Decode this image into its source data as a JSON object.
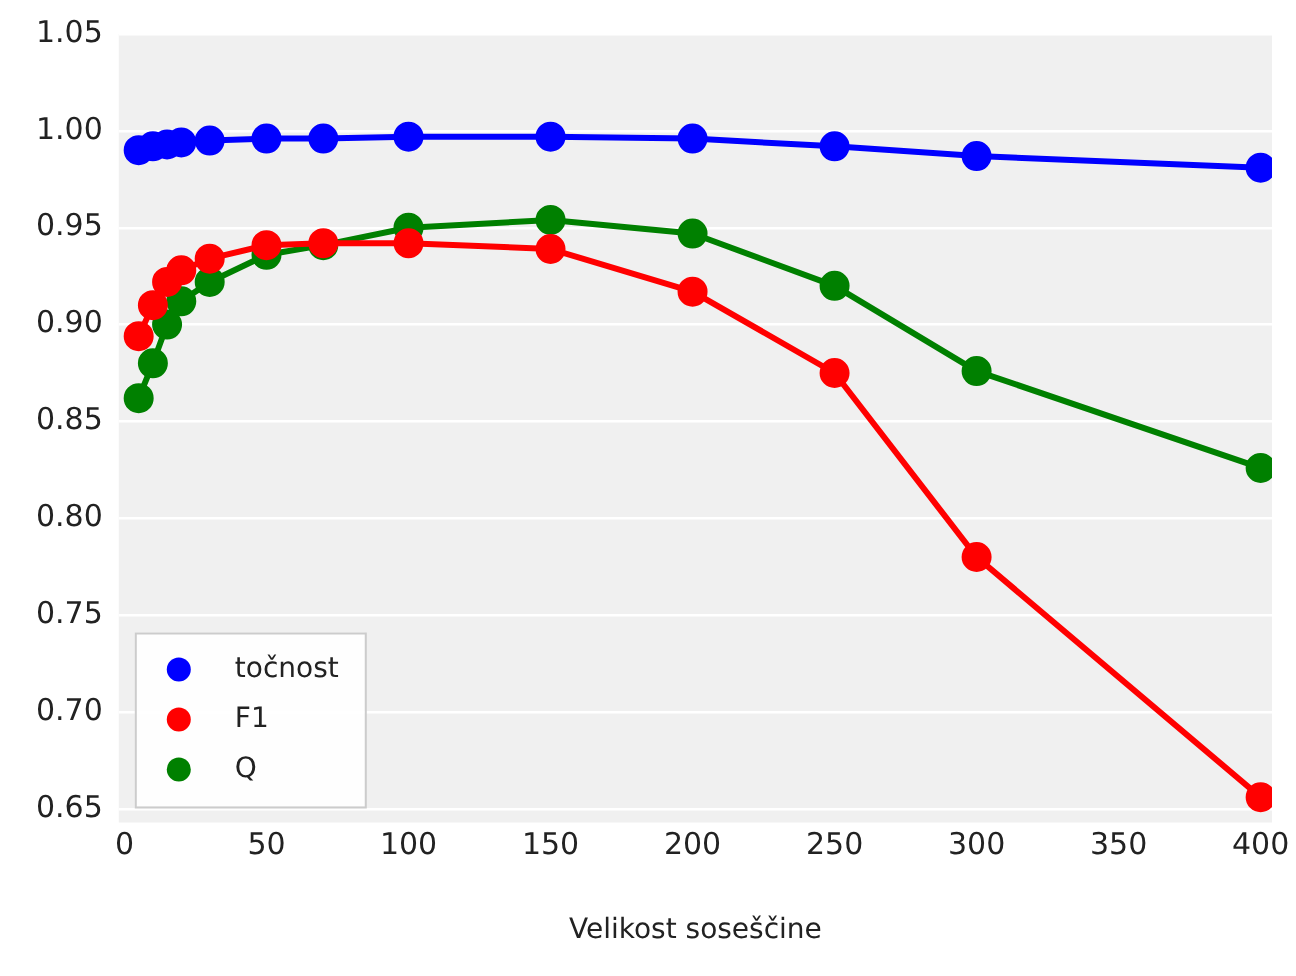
{
  "chart_data": {
    "type": "line",
    "xlabel": "Velikost soseščine",
    "x": [
      5,
      10,
      15,
      20,
      30,
      50,
      70,
      100,
      150,
      200,
      250,
      300,
      400
    ],
    "series": [
      {
        "name": "točnost",
        "color": "#0000ff",
        "values": [
          0.99,
          0.992,
          0.993,
          0.994,
          0.995,
          0.996,
          0.996,
          0.997,
          0.997,
          0.996,
          0.992,
          0.987,
          0.981
        ]
      },
      {
        "name": "F1",
        "color": "#ff0000",
        "values": [
          0.894,
          0.91,
          0.922,
          0.928,
          0.934,
          0.941,
          0.942,
          0.942,
          0.939,
          0.917,
          0.875,
          0.78,
          0.656
        ]
      },
      {
        "name": "Q",
        "color": "#008000",
        "values": [
          0.862,
          0.88,
          0.9,
          0.912,
          0.922,
          0.936,
          0.941,
          0.95,
          0.954,
          0.947,
          0.92,
          0.876,
          0.826
        ]
      }
    ],
    "xlim": [
      -2,
      404
    ],
    "xticks": [
      0,
      50,
      100,
      150,
      200,
      250,
      300,
      350,
      400
    ],
    "ylim": [
      0.643,
      1.05
    ],
    "yticks": [
      {
        "value": 0.65,
        "label": "0.65"
      },
      {
        "value": 0.7,
        "label": "0.70"
      },
      {
        "value": 0.75,
        "label": "0.75"
      },
      {
        "value": 0.8,
        "label": "0.80"
      },
      {
        "value": 0.85,
        "label": "0.85"
      },
      {
        "value": 0.9,
        "label": "0.90"
      },
      {
        "value": 0.95,
        "label": "0.95"
      },
      {
        "value": 1.0,
        "label": "1.00"
      },
      {
        "value": 1.05,
        "label": "1.05"
      }
    ],
    "grid": "y",
    "legend": "bottom left",
    "marker": "circle",
    "line_style": "solid"
  }
}
